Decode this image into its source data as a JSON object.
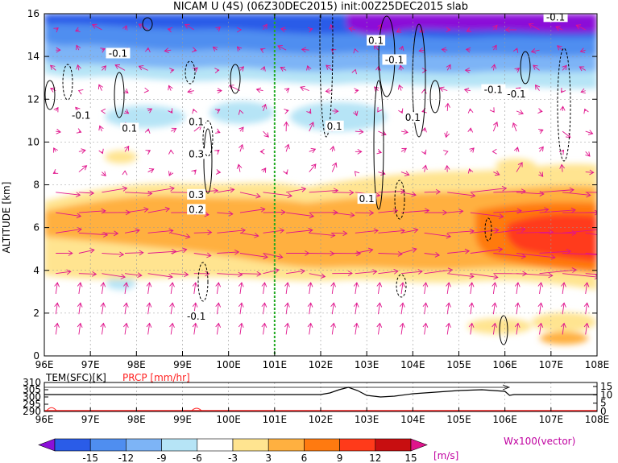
{
  "title": "NICAM  U  (4S)  (06Z30DEC2015)  init:00Z25DEC2015  slab",
  "main_plot": {
    "type": "heatmap",
    "ylabel": "ALTITUDE  [km]",
    "ylim": [
      0,
      16
    ],
    "xlim": [
      96,
      108
    ],
    "y_ticks": [
      "0",
      "2",
      "4",
      "6",
      "8",
      "10",
      "12",
      "14",
      "16"
    ],
    "x_ticks": [
      "96E",
      "97E",
      "98E",
      "99E",
      "100E",
      "101E",
      "102E",
      "103E",
      "104E",
      "105E",
      "106E",
      "107E",
      "108E"
    ],
    "marker_longitude": 101,
    "contour_labels": [
      {
        "text": "-0.1",
        "lon": 97.6,
        "alt": 14.1
      },
      {
        "text": "-0.1",
        "lon": 96.8,
        "alt": 11.2
      },
      {
        "text": "0.1",
        "lon": 97.85,
        "alt": 10.6
      },
      {
        "text": "0.1",
        "lon": 99.3,
        "alt": 10.9
      },
      {
        "text": "0.3",
        "lon": 99.3,
        "alt": 9.4
      },
      {
        "text": "0.3",
        "lon": 99.3,
        "alt": 7.5
      },
      {
        "text": "0.2",
        "lon": 99.3,
        "alt": 6.8
      },
      {
        "text": "-0.1",
        "lon": 99.3,
        "alt": 1.8
      },
      {
        "text": "0.1",
        "lon": 103.2,
        "alt": 14.7
      },
      {
        "text": "-0.1",
        "lon": 103.6,
        "alt": 13.8
      },
      {
        "text": "0.1",
        "lon": 102.3,
        "alt": 10.7
      },
      {
        "text": "0.1",
        "lon": 103.0,
        "alt": 7.3
      },
      {
        "text": "0.1",
        "lon": 104.0,
        "alt": 11.1
      },
      {
        "text": "-0.1",
        "lon": 105.75,
        "alt": 12.4
      },
      {
        "text": "-0.1",
        "lon": 106.25,
        "alt": 12.2
      },
      {
        "text": "-0.1",
        "lon": 107.1,
        "alt": 15.8
      }
    ]
  },
  "sub_plot": {
    "title_left": "TEM(SFC)[K]",
    "title_right": "PRCP [mm/hr]",
    "left_ticks": [
      "310",
      "305",
      "300",
      "295",
      "290"
    ],
    "right_ticks": [
      "15",
      "10",
      "5",
      "0"
    ],
    "x_ticks": [
      "96E",
      "97E",
      "98E",
      "99E",
      "100E",
      "101E",
      "102E",
      "103E",
      "104E",
      "105E",
      "106E",
      "107E",
      "108E"
    ],
    "temperature_baseline_K": 301
  },
  "colorbar": {
    "labels": [
      "-15",
      "-12",
      "-9",
      "-6",
      "-3",
      "3",
      "6",
      "9",
      "12",
      "15"
    ],
    "unit": "[m/s]",
    "vector_note": "Wx100(vector)",
    "colors": [
      "#8b10d8",
      "#2a5ce8",
      "#4f8ef0",
      "#7db4f6",
      "#b6e4f6",
      "#ffffff",
      "#ffe490",
      "#ffb040",
      "#ff7a10",
      "#ff3a1a",
      "#c80e10",
      "#e0148c"
    ]
  }
}
